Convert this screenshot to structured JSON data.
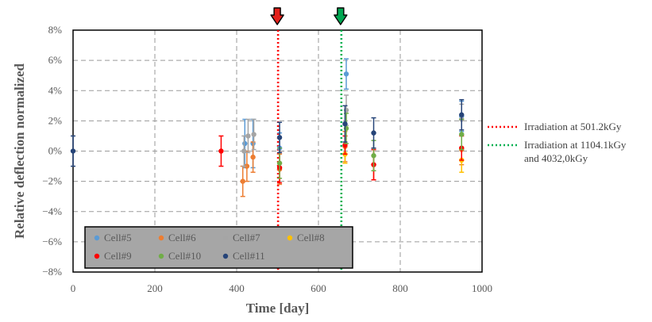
{
  "chart_data": {
    "type": "scatter",
    "title": "",
    "xlabel": "Time [day]",
    "ylabel": "Relative deflection normalized",
    "xlim": [
      0,
      1000
    ],
    "ylim": [
      -8,
      8
    ],
    "x_ticks": [
      "0",
      "200",
      "400",
      "600",
      "800",
      "1000"
    ],
    "y_ticks": [
      "8%",
      "6%",
      "4%",
      "2%",
      "0%",
      "−2%",
      "−4%",
      "−6%",
      "−8%"
    ],
    "grid": true,
    "legend_position": "bottom-left",
    "series": [
      {
        "name": "Cell#5",
        "color": "#5B9BD5",
        "points": [
          {
            "x": 420,
            "y": 0.5,
            "err": 1.6
          },
          {
            "x": 440,
            "y": 0.5,
            "err": 1.6
          },
          {
            "x": 505,
            "y": 0.2,
            "err": 1.0
          },
          {
            "x": 668,
            "y": 5.1,
            "err": 1.0
          },
          {
            "x": 950,
            "y": 2.3,
            "err": 1.0
          }
        ]
      },
      {
        "name": "Cell#6",
        "color": "#ED7D31",
        "points": [
          {
            "x": 415,
            "y": -2.0,
            "err": 1.0
          },
          {
            "x": 425,
            "y": -1.0,
            "err": 1.0
          },
          {
            "x": 440,
            "y": -0.4,
            "err": 1.0
          },
          {
            "x": 505,
            "y": -1.2,
            "err": 1.0
          },
          {
            "x": 665,
            "y": 0.3,
            "err": 1.0
          },
          {
            "x": 735,
            "y": -0.9,
            "err": 1.0
          },
          {
            "x": 950,
            "y": 0.1,
            "err": 1.0
          }
        ]
      },
      {
        "name": "Cell#7",
        "color": "#A5A5A5",
        "points": [
          {
            "x": 418,
            "y": 0.0,
            "err": 1.0
          },
          {
            "x": 428,
            "y": 1.0,
            "err": 1.1
          },
          {
            "x": 442,
            "y": 1.1,
            "err": 1.0
          },
          {
            "x": 668,
            "y": 2.7,
            "err": 1.0
          },
          {
            "x": 950,
            "y": 2.1,
            "err": 1.0
          }
        ]
      },
      {
        "name": "Cell#8",
        "color": "#FFC000",
        "points": [
          {
            "x": 665,
            "y": -0.2,
            "err": 0.6
          },
          {
            "x": 950,
            "y": -0.6,
            "err": 0.8
          }
        ]
      },
      {
        "name": "Cell#9",
        "color": "#FF0000",
        "points": [
          {
            "x": 362,
            "y": 0.0,
            "err": 1.0
          },
          {
            "x": 505,
            "y": -1.1,
            "err": 1.0
          },
          {
            "x": 665,
            "y": 0.4,
            "err": 0.6
          },
          {
            "x": 735,
            "y": -0.9,
            "err": 1.0
          },
          {
            "x": 950,
            "y": 0.2,
            "err": 0.8
          }
        ]
      },
      {
        "name": "Cell#10",
        "color": "#70AD47",
        "points": [
          {
            "x": 505,
            "y": -0.8,
            "err": 1.0
          },
          {
            "x": 668,
            "y": 1.5,
            "err": 1.0
          },
          {
            "x": 735,
            "y": -0.3,
            "err": 1.0
          },
          {
            "x": 950,
            "y": 1.1,
            "err": 1.0
          }
        ]
      },
      {
        "name": "Cell#11",
        "color": "#264478",
        "points": [
          {
            "x": 0,
            "y": 0.0,
            "err": 1.0
          },
          {
            "x": 505,
            "y": 0.9,
            "err": 1.0
          },
          {
            "x": 665,
            "y": 1.8,
            "err": 1.2
          },
          {
            "x": 735,
            "y": 1.2,
            "err": 1.0
          },
          {
            "x": 950,
            "y": 2.4,
            "err": 1.0
          }
        ]
      }
    ],
    "vertical_lines": [
      {
        "x": 501.2,
        "color": "#FF0000",
        "label": "Irradiation at 501.2kGy"
      },
      {
        "x": 656,
        "color": "#00B050",
        "label": "Irradiation at 1104.1kGy and 4032,0kGy",
        "label_lines": [
          "Irradiation at 1104.1kGy",
          "and 4032,0kGy"
        ]
      }
    ],
    "arrows": [
      {
        "x": 501.2,
        "fill": "#E3201B"
      },
      {
        "x": 656,
        "fill": "#00A651"
      }
    ]
  }
}
